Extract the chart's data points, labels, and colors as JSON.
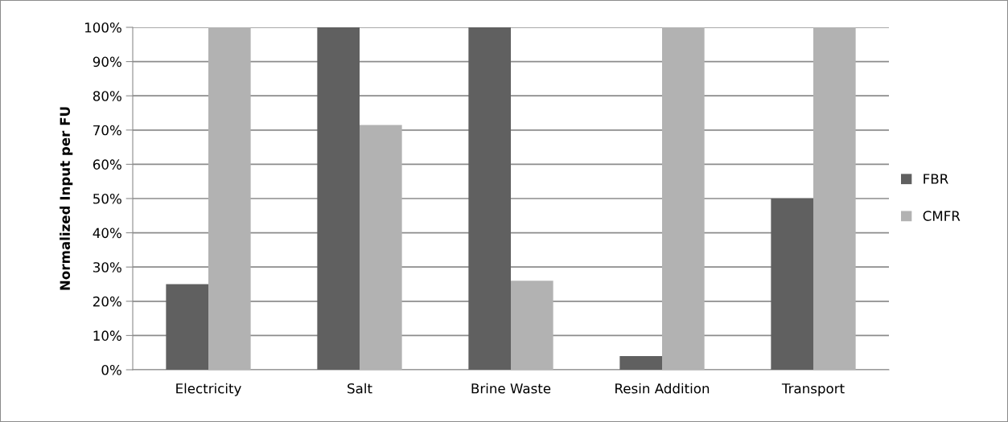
{
  "chart_data": {
    "type": "bar",
    "ylabel": "Normalized Input per FU",
    "categories": [
      "Electricity",
      "Salt",
      "Brine Waste",
      "Resin Addition",
      "Transport"
    ],
    "series": [
      {
        "name": "FBR",
        "color": "#606060",
        "values": [
          25,
          100,
          100,
          4,
          50
        ]
      },
      {
        "name": "CMFR",
        "color": "#b2b2b2",
        "values": [
          100,
          71.5,
          26,
          100,
          100
        ]
      }
    ],
    "ylim": [
      0,
      100
    ],
    "yticks": [
      {
        "value": 0,
        "label": "0%"
      },
      {
        "value": 10,
        "label": "10%"
      },
      {
        "value": 20,
        "label": "20%"
      },
      {
        "value": 30,
        "label": "30%"
      },
      {
        "value": 40,
        "label": "40%"
      },
      {
        "value": 50,
        "label": "50%"
      },
      {
        "value": 60,
        "label": "60%"
      },
      {
        "value": 70,
        "label": "70%"
      },
      {
        "value": 80,
        "label": "80%"
      },
      {
        "value": 90,
        "label": "90%"
      },
      {
        "value": 100,
        "label": "100%"
      }
    ],
    "grid": "y",
    "legend": "right"
  }
}
